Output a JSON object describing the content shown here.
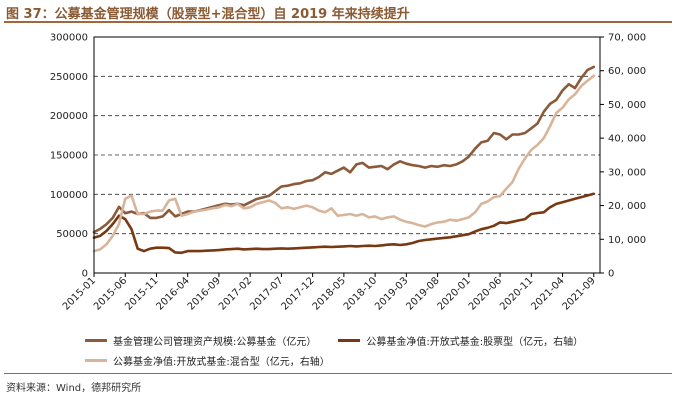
{
  "header": {
    "title": "图 37：公募基金管理规模（股票型+混合型）自 2019 年来持续提升"
  },
  "footer": {
    "source": "资料来源：Wind，德邦研究所"
  },
  "chart_data": {
    "type": "line",
    "title": "图 37：公募基金管理规模（股票型+混合型）自 2019 年来持续提升",
    "x_tick_labels": [
      "2015-01",
      "2015-06",
      "2015-11",
      "2016-04",
      "2016-09",
      "2017-02",
      "2017-07",
      "2017-12",
      "2018-05",
      "2018-10",
      "2019-03",
      "2019-08",
      "2020-01",
      "2020-06",
      "2020-11",
      "2021-04",
      "2021-09"
    ],
    "x_range": [
      0,
      81
    ],
    "y_left": {
      "range": [
        0,
        300000
      ],
      "ticks": [
        "0",
        "50000",
        "100000",
        "150000",
        "200000",
        "250000",
        "300000"
      ]
    },
    "y_right": {
      "range": [
        0,
        70000
      ],
      "ticks": [
        "0",
        "10, 000",
        "20, 000",
        "30, 000",
        "40, 000",
        "50, 000",
        "60, 000",
        "70, 000"
      ]
    },
    "grid": "horizontal dashed",
    "legend_position": "bottom",
    "series": [
      {
        "name": "基金管理公司管理资产规模:公募基金（亿元）",
        "axis": "left",
        "color": "#8a5a3a",
        "x": [
          0,
          1,
          2,
          3,
          4,
          5,
          6,
          7,
          8,
          9,
          10,
          11,
          12,
          13,
          14,
          15,
          16,
          17,
          18,
          19,
          20,
          21,
          22,
          23,
          24,
          25,
          26,
          27,
          28,
          29,
          30,
          31,
          32,
          33,
          34,
          35,
          36,
          37,
          38,
          39,
          40,
          41,
          42,
          43,
          44,
          45,
          46,
          47,
          48,
          49,
          50,
          51,
          52,
          53,
          54,
          55,
          56,
          57,
          58,
          59,
          60,
          61,
          62,
          63,
          64,
          65,
          66,
          67,
          68,
          69,
          70,
          71,
          72,
          73,
          74,
          75,
          76,
          77,
          78,
          79,
          80
        ],
        "values": [
          52000,
          56000,
          62000,
          70000,
          84000,
          76000,
          78000,
          75000,
          76000,
          70000,
          70000,
          72000,
          80000,
          72000,
          75000,
          78000,
          78000,
          80000,
          82000,
          84000,
          86000,
          88000,
          87000,
          88000,
          86000,
          90000,
          94000,
          96000,
          98000,
          104000,
          110000,
          111000,
          113000,
          114000,
          117000,
          118000,
          122000,
          128000,
          126000,
          130000,
          134000,
          128000,
          138000,
          140000,
          134000,
          135000,
          136000,
          132000,
          138000,
          142000,
          139000,
          137000,
          136000,
          134000,
          136000,
          135000,
          137000,
          136000,
          138000,
          142000,
          148000,
          158000,
          166000,
          168000,
          178000,
          176000,
          170000,
          176000,
          176000,
          178000,
          184000,
          190000,
          205000,
          215000,
          220000,
          232000,
          240000,
          235000,
          248000,
          258000,
          262000
        ]
      },
      {
        "name": "公募基金净值:开放式基金:股票型（亿元，右轴）",
        "axis": "right",
        "color": "#7a3812",
        "x": [
          0,
          1,
          2,
          3,
          4,
          5,
          6,
          7,
          8,
          9,
          10,
          11,
          12,
          13,
          14,
          15,
          16,
          17,
          18,
          19,
          20,
          21,
          22,
          23,
          24,
          25,
          26,
          27,
          28,
          29,
          30,
          31,
          32,
          33,
          34,
          35,
          36,
          37,
          38,
          39,
          40,
          41,
          42,
          43,
          44,
          45,
          46,
          47,
          48,
          49,
          50,
          51,
          52,
          53,
          54,
          55,
          56,
          57,
          58,
          59,
          60,
          61,
          62,
          63,
          64,
          65,
          66,
          67,
          68,
          69,
          70,
          71,
          72,
          73,
          74,
          75,
          76,
          77,
          78,
          79,
          80
        ],
        "values": [
          10500,
          11000,
          12500,
          14500,
          17000,
          16000,
          13000,
          7200,
          6500,
          7200,
          7500,
          7500,
          7400,
          6100,
          6000,
          6500,
          6500,
          6500,
          6600,
          6700,
          6800,
          7000,
          7100,
          7200,
          7000,
          7100,
          7200,
          7100,
          7100,
          7200,
          7300,
          7200,
          7300,
          7400,
          7500,
          7600,
          7700,
          7800,
          7700,
          7800,
          7900,
          8000,
          7900,
          8000,
          8100,
          8000,
          8200,
          8400,
          8500,
          8300,
          8500,
          8900,
          9500,
          9800,
          10000,
          10200,
          10400,
          10600,
          10900,
          11200,
          11500,
          12300,
          13000,
          13400,
          14000,
          15000,
          14800,
          15200,
          15600,
          16000,
          17500,
          17800,
          18000,
          19500,
          20500,
          21000,
          21500,
          22000,
          22500,
          23000,
          23500
        ]
      },
      {
        "name": "公募基金净值:开放式基金:混合型（亿元，右轴）",
        "axis": "right",
        "color": "#d8b59a",
        "x": [
          0,
          1,
          2,
          3,
          4,
          5,
          6,
          7,
          8,
          9,
          10,
          11,
          12,
          13,
          14,
          15,
          16,
          17,
          18,
          19,
          20,
          21,
          22,
          23,
          24,
          25,
          26,
          27,
          28,
          29,
          30,
          31,
          32,
          33,
          34,
          35,
          36,
          37,
          38,
          39,
          40,
          41,
          42,
          43,
          44,
          45,
          46,
          47,
          48,
          49,
          50,
          51,
          52,
          53,
          54,
          55,
          56,
          57,
          58,
          59,
          60,
          61,
          62,
          63,
          64,
          65,
          66,
          67,
          68,
          69,
          70,
          71,
          72,
          73,
          74,
          75,
          76,
          77,
          78,
          79,
          80
        ],
        "values": [
          6500,
          7000,
          8500,
          11000,
          14500,
          22000,
          23000,
          17500,
          17500,
          18200,
          18500,
          18500,
          21500,
          22000,
          17000,
          17500,
          18200,
          18500,
          18800,
          19200,
          19500,
          20200,
          19800,
          20500,
          19200,
          19500,
          20500,
          21000,
          21500,
          20800,
          19200,
          19500,
          19000,
          19500,
          20000,
          19500,
          18500,
          18000,
          19200,
          17000,
          17200,
          17500,
          17000,
          17500,
          16500,
          16800,
          16000,
          16500,
          16800,
          15800,
          15200,
          14800,
          14200,
          13800,
          14500,
          15000,
          15200,
          15800,
          15500,
          16000,
          16500,
          18000,
          20500,
          21200,
          22500,
          22800,
          25000,
          27000,
          31000,
          34000,
          36500,
          38000,
          40000,
          43500,
          47500,
          49000,
          51500,
          53000,
          55500,
          57000,
          58500
        ]
      }
    ]
  }
}
